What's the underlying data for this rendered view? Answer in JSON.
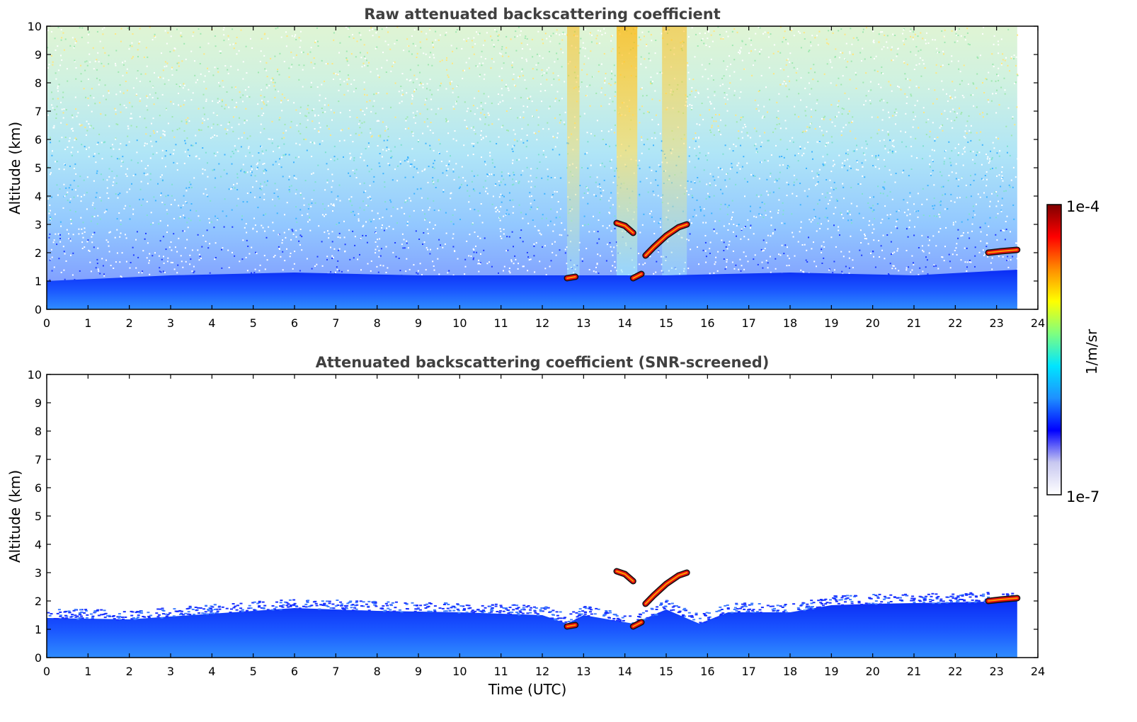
{
  "chart_data": [
    {
      "type": "heatmap",
      "title": "Raw attenuated backscattering coefficient",
      "xlabel": "",
      "ylabel": "Altitude (km)",
      "xlim": [
        0,
        24
      ],
      "ylim": [
        0,
        10
      ],
      "xticks": [
        "0",
        "1",
        "2",
        "3",
        "4",
        "5",
        "6",
        "7",
        "8",
        "9",
        "10",
        "11",
        "12",
        "13",
        "14",
        "15",
        "16",
        "17",
        "18",
        "19",
        "20",
        "21",
        "22",
        "23",
        "24"
      ],
      "yticks": [
        "0",
        "1",
        "2",
        "3",
        "4",
        "5",
        "6",
        "7",
        "8",
        "9",
        "10"
      ],
      "data_end_time": 23.5,
      "boundary_layer_top_km": [
        [
          0,
          1.0
        ],
        [
          3,
          1.2
        ],
        [
          6,
          1.3
        ],
        [
          9,
          1.2
        ],
        [
          12,
          1.2
        ],
        [
          15,
          1.2
        ],
        [
          18,
          1.3
        ],
        [
          21,
          1.2
        ],
        [
          23.5,
          1.4
        ]
      ],
      "vertical_streaks": [
        {
          "x0": 12.6,
          "x1": 12.9,
          "intensity": "medium"
        },
        {
          "x0": 13.8,
          "x1": 14.3,
          "intensity": "high"
        },
        {
          "x0": 14.9,
          "x1": 15.5,
          "intensity": "medium"
        }
      ],
      "cloud_layers": [
        {
          "points": [
            [
              13.8,
              3.05
            ],
            [
              14.0,
              2.95
            ],
            [
              14.2,
              2.7
            ]
          ]
        },
        {
          "points": [
            [
              14.5,
              1.9
            ],
            [
              14.7,
              2.2
            ],
            [
              15.0,
              2.6
            ],
            [
              15.3,
              2.9
            ],
            [
              15.5,
              3.0
            ]
          ]
        },
        {
          "points": [
            [
              12.6,
              1.1
            ],
            [
              12.8,
              1.15
            ]
          ]
        },
        {
          "points": [
            [
              14.2,
              1.1
            ],
            [
              14.4,
              1.25
            ]
          ]
        },
        {
          "points": [
            [
              22.8,
              2.0
            ],
            [
              23.1,
              2.05
            ],
            [
              23.5,
              2.1
            ]
          ]
        }
      ]
    },
    {
      "type": "heatmap",
      "title": "Attenuated backscattering coefficient (SNR-screened)",
      "xlabel": "Time (UTC)",
      "ylabel": "Altitude (km)",
      "xlim": [
        0,
        24
      ],
      "ylim": [
        0,
        10
      ],
      "xticks": [
        "0",
        "1",
        "2",
        "3",
        "4",
        "5",
        "6",
        "7",
        "8",
        "9",
        "10",
        "11",
        "12",
        "13",
        "14",
        "15",
        "16",
        "17",
        "18",
        "19",
        "20",
        "21",
        "22",
        "23",
        "24"
      ],
      "yticks": [
        "0",
        "1",
        "2",
        "3",
        "4",
        "5",
        "6",
        "7",
        "8",
        "9",
        "10"
      ],
      "data_end_time": 23.5,
      "layer_top_km": [
        [
          0,
          1.4
        ],
        [
          2,
          1.35
        ],
        [
          4,
          1.55
        ],
        [
          6,
          1.75
        ],
        [
          8,
          1.65
        ],
        [
          10,
          1.6
        ],
        [
          12,
          1.5
        ],
        [
          12.6,
          1.2
        ],
        [
          13,
          1.5
        ],
        [
          14.2,
          1.2
        ],
        [
          15,
          1.7
        ],
        [
          15.8,
          1.2
        ],
        [
          16.5,
          1.6
        ],
        [
          18,
          1.6
        ],
        [
          19,
          1.85
        ],
        [
          20,
          1.9
        ],
        [
          22,
          1.95
        ],
        [
          23.5,
          2.0
        ]
      ],
      "cloud_layers": [
        {
          "points": [
            [
              13.8,
              3.05
            ],
            [
              14.0,
              2.95
            ],
            [
              14.2,
              2.7
            ]
          ]
        },
        {
          "points": [
            [
              14.5,
              1.9
            ],
            [
              14.7,
              2.2
            ],
            [
              15.0,
              2.6
            ],
            [
              15.3,
              2.9
            ],
            [
              15.5,
              3.0
            ]
          ]
        },
        {
          "points": [
            [
              12.6,
              1.1
            ],
            [
              12.8,
              1.15
            ]
          ]
        },
        {
          "points": [
            [
              14.2,
              1.1
            ],
            [
              14.4,
              1.25
            ]
          ]
        },
        {
          "points": [
            [
              22.8,
              2.0
            ],
            [
              23.1,
              2.05
            ],
            [
              23.5,
              2.1
            ]
          ]
        }
      ]
    }
  ],
  "colorbar": {
    "max_label": "1e-4",
    "min_label": "1e-7",
    "unit_label": "1/m/sr",
    "scale": "log",
    "colors": [
      "#ffffff",
      "#c8c8f0",
      "#0000ff",
      "#1e90ff",
      "#00e5ff",
      "#7fff7f",
      "#ffff00",
      "#ff8c00",
      "#ff0000",
      "#7f0000"
    ]
  }
}
